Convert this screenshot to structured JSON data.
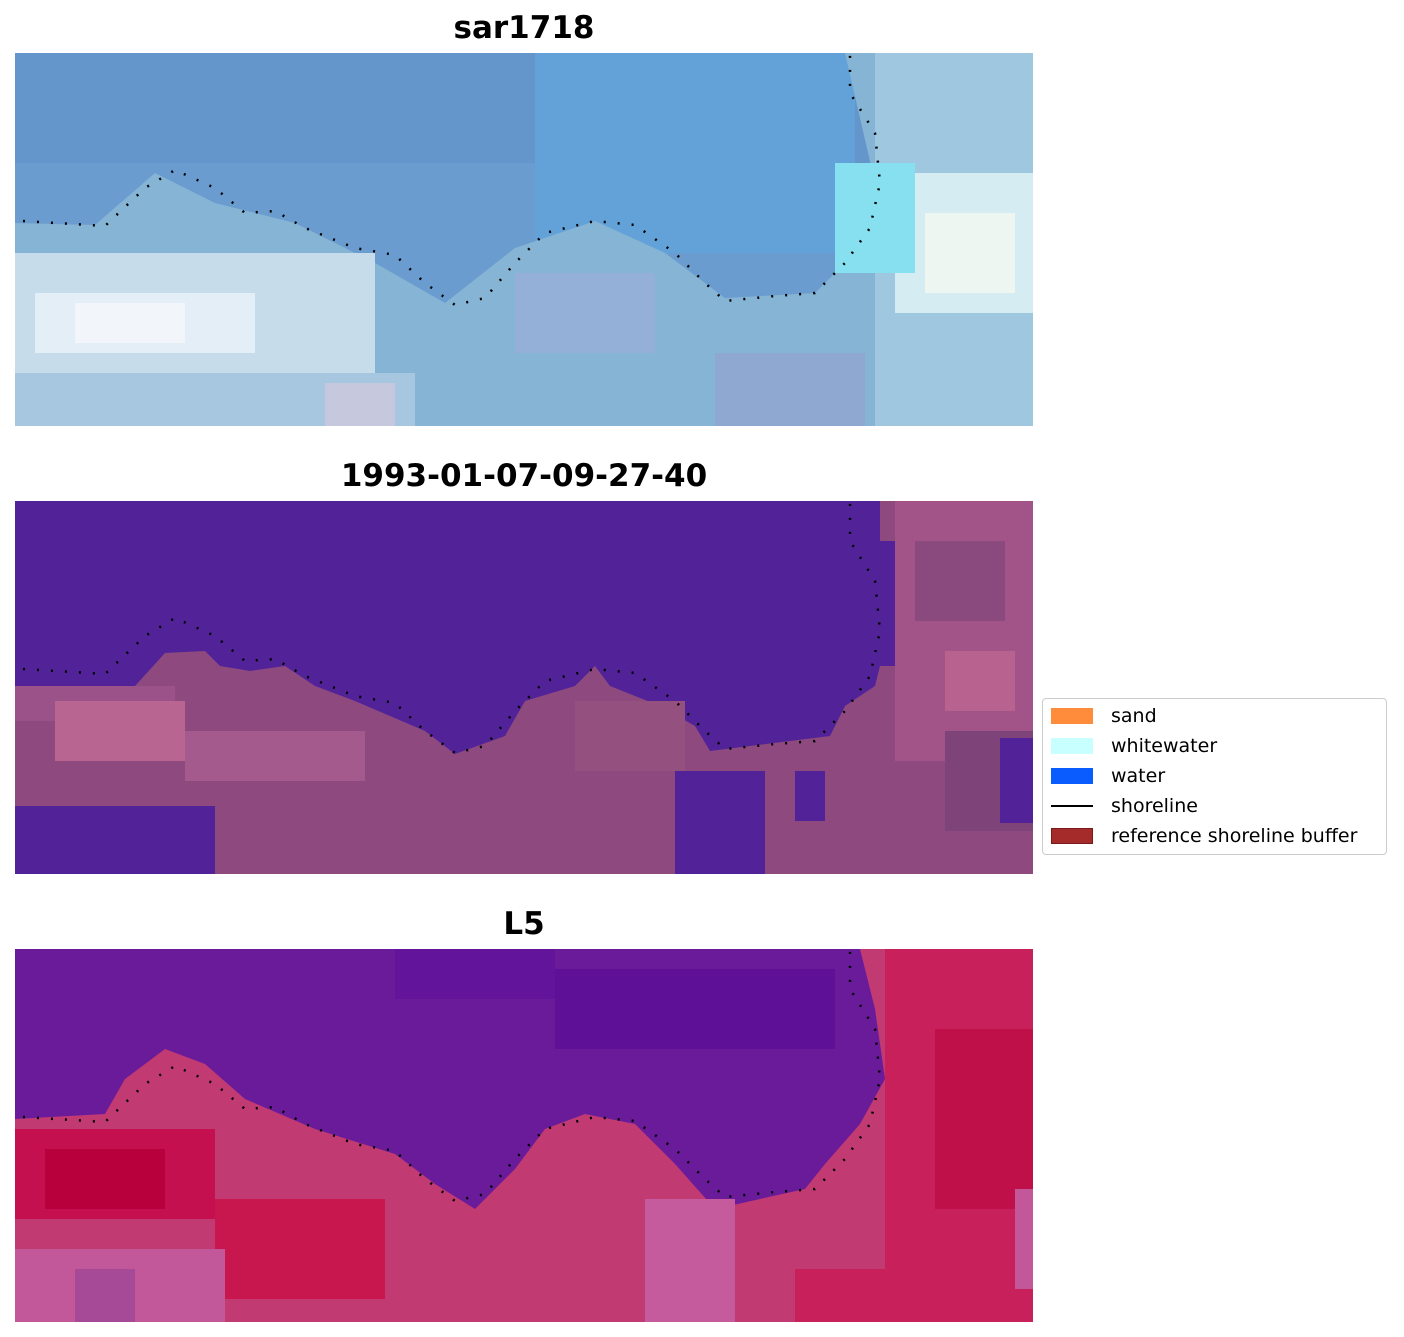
{
  "panels": [
    {
      "title": "sar1718",
      "colors": {
        "water": "#6a9ccf",
        "land": "#c8dde8",
        "accent": "#f2f8ff"
      }
    },
    {
      "title": "1993-01-07-09-27-40",
      "colors": {
        "water": "#522398",
        "land": "#8e4a7e",
        "accent": "#b86592"
      }
    },
    {
      "title": "L5",
      "colors": {
        "water": "#6a1b9a",
        "land": "#c2185b",
        "accent": "#c2579a"
      }
    }
  ],
  "legend": {
    "items": [
      {
        "label": "sand",
        "color": "#ff8c3a",
        "kind": "patch"
      },
      {
        "label": "whitewater",
        "color": "#c8ffff",
        "kind": "patch"
      },
      {
        "label": "water",
        "color": "#0a5cff",
        "kind": "patch"
      },
      {
        "label": "shoreline",
        "color": "#000000",
        "kind": "line"
      },
      {
        "label": "reference shoreline buffer",
        "color": "#a52a2a",
        "kind": "patch"
      }
    ]
  }
}
